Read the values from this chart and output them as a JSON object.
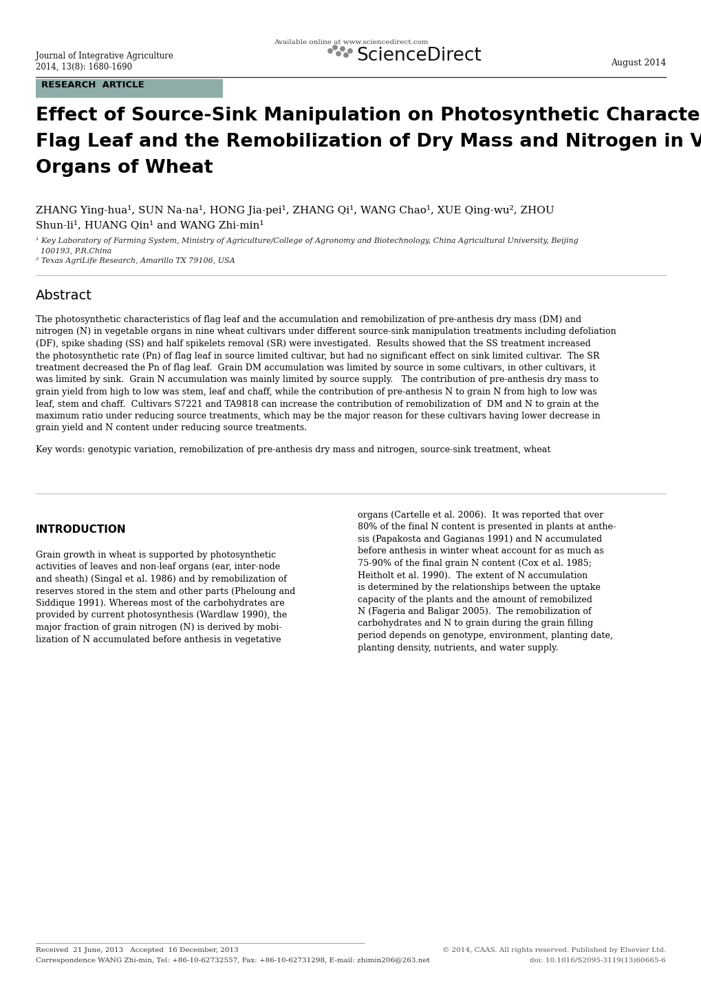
{
  "background_color": "#ffffff",
  "header_journal": "Journal of Integrative Agriculture",
  "header_volume": "2014, 13(8): 1680-1690",
  "header_available_online": "Available online at www.sciencedirect.com",
  "header_sciencedirect": "ScienceDirect",
  "header_date": "August 2014",
  "header_research_article": "RESEARCH  ARTICLE",
  "header_ra_bg": "#8fada8",
  "title_line1": "Effect of Source-Sink Manipulation on Photosynthetic Characteristics of",
  "title_line2": "Flag Leaf and the Remobilization of Dry Mass and Nitrogen in Vegetative",
  "title_line3": "Organs of Wheat",
  "author_line1": "ZHANG Ying-hua¹, SUN Na-na¹, HONG Jia-pei¹, ZHANG Qi¹, WANG Chao¹, XUE Qing-wu², ZHOU",
  "author_line2": "Shun-li¹, HUANG Qin¹ and WANG Zhi-min¹",
  "affil1_line1": "¹ Key Laboratory of Farming System, Ministry of Agriculture/College of Agronomy and Biotechnology, China Agricultural University, Beijing",
  "affil1_line2": "  100193, P.R.China",
  "affil2": "² Texas AgriLife Research, Amarillo TX 79106, USA",
  "abstract_title": "Abstract",
  "abstract_lines": [
    "The photosynthetic characteristics of flag leaf and the accumulation and remobilization of pre-anthesis dry mass (DM) and",
    "nitrogen (N) in vegetable organs in nine wheat cultivars under different source-sink manipulation treatments including defoliation",
    "(DF), spike shading (SS) and half spikelets removal (SR) were investigated.  Results showed that the SS treatment increased",
    "the photosynthetic rate (Pn) of flag leaf in source limited cultivar, but had no significant effect on sink limited cultivar.  The SR",
    "treatment decreased the Pn of flag leaf.  Grain DM accumulation was limited by source in some cultivars, in other cultivars, it",
    "was limited by sink.  Grain N accumulation was mainly limited by source supply.   The contribution of pre-anthesis dry mass to",
    "grain yield from high to low was stem, leaf and chaff, while the contribution of pre-anthesis N to grain N from high to low was",
    "leaf, stem and chaff.  Cultivars S7221 and TA9818 can increase the contribution of remobilization of  DM and N to grain at the",
    "maximum ratio under reducing source treatments, which may be the major reason for these cultivars having lower decrease in",
    "grain yield and N content under reducing source treatments."
  ],
  "keywords": "Key words: genotypic variation, remobilization of pre-anthesis dry mass and nitrogen, source-sink treatment, wheat",
  "intro_title": "INTRODUCTION",
  "intro_col1_lines": [
    "Grain growth in wheat is supported by photosynthetic",
    "activities of leaves and non-leaf organs (ear, inter-node",
    "and sheath) (Singal et al. 1986) and by remobilization of",
    "reserves stored in the stem and other parts (Pheloung and",
    "Siddique 1991). Whereas most of the carbohydrates are",
    "provided by current photosynthesis (Wardlaw 1990), the",
    "major fraction of grain nitrogen (N) is derived by mobi-",
    "lization of N accumulated before anthesis in vegetative"
  ],
  "intro_col2_lines": [
    "organs (Cartelle et al. 2006).  It was reported that over",
    "80% of the final N content is presented in plants at anthe-",
    "sis (Papakosta and Gagianas 1991) and N accumulated",
    "before anthesis in winter wheat account for as much as",
    "75-90% of the final grain N content (Cox et al. 1985;",
    "Heitholt et al. 1990).  The extent of N accumulation",
    "is determined by the relationships between the uptake",
    "capacity of the plants and the amount of remobilized",
    "N (Fageria and Baligar 2005).  The remobilization of",
    "carbohydrates and N to grain during the grain filling",
    "period depends on genotype, environment, planting date,",
    "planting density, nutrients, and water supply."
  ],
  "footer_received": "Received  21 June, 2013   Accepted  16 December, 2013",
  "footer_correspondence": "Correspondence WANG Zhi-min, Tel: +86-10-62732557, Fax: +86-10-62731298, E-mail: zhimin206@263.net",
  "footer_copyright": "© 2014, CAAS. All rights reserved. Published by Elsevier Ltd.",
  "footer_doi": "doi: 10.1016/S2095-3119(13)60665-6",
  "sciencedirect_dots": [
    [
      480,
      74
    ],
    [
      487,
      69
    ],
    [
      492,
      78
    ],
    [
      498,
      71
    ],
    [
      503,
      80
    ],
    [
      509,
      74
    ]
  ]
}
